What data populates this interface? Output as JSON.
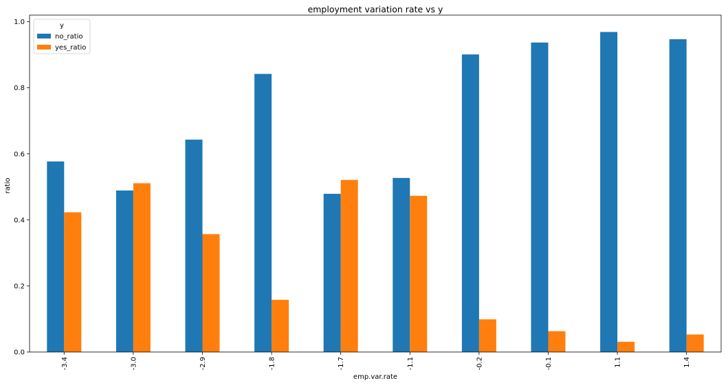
{
  "chart_data": {
    "type": "bar",
    "title": "employment variation rate vs y",
    "xlabel": "emp.var.rate",
    "ylabel": "ratio",
    "categories": [
      "-3.4",
      "-3.0",
      "-2.9",
      "-1.8",
      "-1.7",
      "-1.1",
      "-0.2",
      "-0.1",
      "1.1",
      "1.4"
    ],
    "series": [
      {
        "name": "no_ratio",
        "color": "#1f77b4",
        "values": [
          0.577,
          0.489,
          0.643,
          0.842,
          0.479,
          0.527,
          0.901,
          0.937,
          0.969,
          0.947
        ]
      },
      {
        "name": "yes_ratio",
        "color": "#ff7f0e",
        "values": [
          0.423,
          0.511,
          0.357,
          0.158,
          0.521,
          0.473,
          0.099,
          0.063,
          0.031,
          0.053
        ]
      }
    ],
    "ylim": [
      0,
      1.02
    ],
    "yticks": [
      "0.0",
      "0.2",
      "0.4",
      "0.6",
      "0.8",
      "1.0"
    ],
    "legend": {
      "title": "y",
      "placement": "top-left"
    },
    "grid": false
  }
}
